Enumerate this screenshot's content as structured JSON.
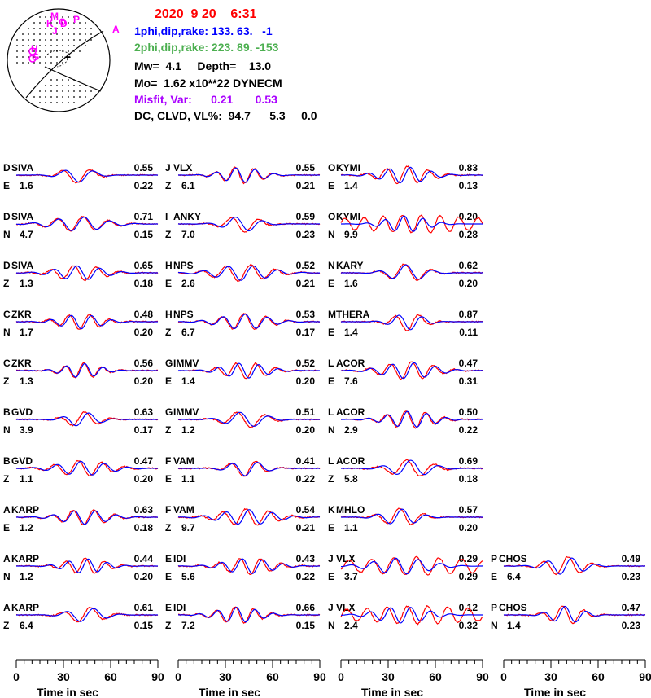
{
  "header": {
    "date": "2020  9 20    6:31",
    "plane1": "1phi,dip,rake: 133. 63.   -1",
    "plane2": "2phi,dip,rake: 223. 89. -153",
    "mw_depth": "Mw=  4.1     Depth=    13.0",
    "mo": "Mo=  1.62 x10**22 DYNECM",
    "misfit": "Misfit, Var:      0.21       0.53",
    "dc": "DC, CLVD, VL%:  94.7      5.3     0.0"
  },
  "colors": {
    "date": "#ff0000",
    "plane1": "#0000ff",
    "plane2": "#4caf50",
    "misfit": "#aa00ff",
    "observed": "#ff0000",
    "synthetic": "#0000ff",
    "station_marker": "#ff00ff"
  },
  "beachball": {
    "markers": [
      "M",
      "K",
      "O",
      "P",
      "J",
      "D",
      "H",
      "G",
      "A"
    ],
    "plus_marker": "+"
  },
  "chart_data": {
    "type": "line",
    "xlabel": "Time  in sec",
    "x_ticks": [
      0,
      30,
      60,
      90
    ],
    "xlim": [
      0,
      90
    ],
    "series_legend": [
      "observed (red)",
      "synthetic (blue)"
    ],
    "columns": [
      [
        {
          "code": "D",
          "station": "SIVA",
          "comp": "E",
          "dist": "1.6",
          "corr": "0.55",
          "amp": "0.22"
        },
        {
          "code": "D",
          "station": "SIVA",
          "comp": "N",
          "dist": "4.7",
          "corr": "0.71",
          "amp": "0.15"
        },
        {
          "code": "D",
          "station": "SIVA",
          "comp": "Z",
          "dist": "1.3",
          "corr": "0.65",
          "amp": "0.18"
        },
        {
          "code": "C",
          "station": "ZKR",
          "comp": "N",
          "dist": "1.7",
          "corr": "0.48",
          "amp": "0.20"
        },
        {
          "code": "C",
          "station": "ZKR",
          "comp": "Z",
          "dist": "1.3",
          "corr": "0.56",
          "amp": "0.20"
        },
        {
          "code": "B",
          "station": "GVD",
          "comp": "N",
          "dist": "3.9",
          "corr": "0.63",
          "amp": "0.17"
        },
        {
          "code": "B",
          "station": "GVD",
          "comp": "Z",
          "dist": "1.1",
          "corr": "0.47",
          "amp": "0.20"
        },
        {
          "code": "A",
          "station": "KARP",
          "comp": "E",
          "dist": "1.2",
          "corr": "0.63",
          "amp": "0.18"
        },
        {
          "code": "A",
          "station": "KARP",
          "comp": "N",
          "dist": "1.2",
          "corr": "0.44",
          "amp": "0.20"
        },
        {
          "code": "A",
          "station": "KARP",
          "comp": "Z",
          "dist": "6.4",
          "corr": "0.61",
          "amp": "0.15"
        }
      ],
      [
        {
          "code": "J",
          "station": "VLX",
          "comp": "Z",
          "dist": "6.1",
          "corr": "0.55",
          "amp": "0.21"
        },
        {
          "code": "I",
          "station": "ANKY",
          "comp": "Z",
          "dist": "7.0",
          "corr": "0.59",
          "amp": "0.23"
        },
        {
          "code": "H",
          "station": "NPS",
          "comp": "E",
          "dist": "2.6",
          "corr": "0.52",
          "amp": "0.21"
        },
        {
          "code": "H",
          "station": "NPS",
          "comp": "Z",
          "dist": "6.7",
          "corr": "0.53",
          "amp": "0.17"
        },
        {
          "code": "G",
          "station": "IMMV",
          "comp": "E",
          "dist": "1.4",
          "corr": "0.52",
          "amp": "0.20"
        },
        {
          "code": "G",
          "station": "IMMV",
          "comp": "Z",
          "dist": "1.2",
          "corr": "0.51",
          "amp": "0.20"
        },
        {
          "code": "F",
          "station": "VAM",
          "comp": "E",
          "dist": "1.1",
          "corr": "0.41",
          "amp": "0.22"
        },
        {
          "code": "F",
          "station": "VAM",
          "comp": "Z",
          "dist": "9.7",
          "corr": "0.54",
          "amp": "0.21"
        },
        {
          "code": "E",
          "station": "IDI",
          "comp": "E",
          "dist": "5.6",
          "corr": "0.43",
          "amp": "0.22"
        },
        {
          "code": "E",
          "station": "IDI",
          "comp": "Z",
          "dist": "7.2",
          "corr": "0.66",
          "amp": "0.15"
        }
      ],
      [
        {
          "code": "O",
          "station": "KYMI",
          "comp": "E",
          "dist": "1.4",
          "corr": "0.83",
          "amp": "0.13"
        },
        {
          "code": "O",
          "station": "KYMI",
          "comp": "N",
          "dist": "9.9",
          "corr": "0.20",
          "amp": "0.28"
        },
        {
          "code": "N",
          "station": "KARY",
          "comp": "E",
          "dist": "1.6",
          "corr": "0.62",
          "amp": "0.20"
        },
        {
          "code": "M",
          "station": "THERA",
          "comp": "E",
          "dist": "1.4",
          "corr": "0.87",
          "amp": "0.11"
        },
        {
          "code": "L",
          "station": "ACOR",
          "comp": "E",
          "dist": "7.6",
          "corr": "0.47",
          "amp": "0.31"
        },
        {
          "code": "L",
          "station": "ACOR",
          "comp": "N",
          "dist": "2.9",
          "corr": "0.50",
          "amp": "0.22"
        },
        {
          "code": "L",
          "station": "ACOR",
          "comp": "Z",
          "dist": "5.8",
          "corr": "0.69",
          "amp": "0.18"
        },
        {
          "code": "K",
          "station": "MHLO",
          "comp": "E",
          "dist": "1.1",
          "corr": "0.57",
          "amp": "0.20"
        },
        {
          "code": "J",
          "station": "VLX",
          "comp": "E",
          "dist": "3.7",
          "corr": "0.29",
          "amp": "0.29"
        },
        {
          "code": "J",
          "station": "VLX",
          "comp": "N",
          "dist": "2.4",
          "corr": "0.12",
          "amp": "0.32"
        }
      ],
      [
        {
          "code": "P",
          "station": "CHOS",
          "comp": "E",
          "dist": "6.4",
          "corr": "0.49",
          "amp": "0.23"
        },
        {
          "code": "P",
          "station": "CHOS",
          "comp": "N",
          "dist": "1.4",
          "corr": "0.47",
          "amp": "0.23"
        }
      ]
    ]
  }
}
